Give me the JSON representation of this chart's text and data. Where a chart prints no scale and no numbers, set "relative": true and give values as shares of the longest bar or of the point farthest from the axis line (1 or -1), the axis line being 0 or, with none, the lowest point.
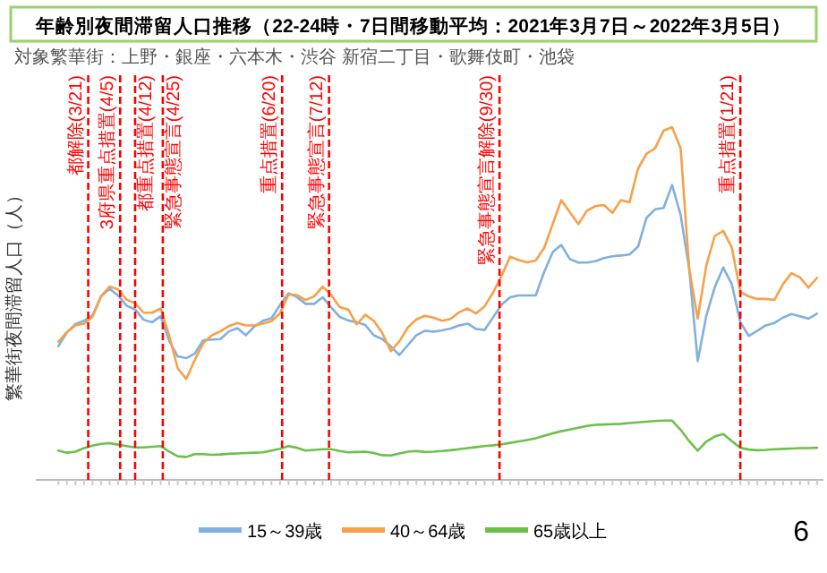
{
  "chart_data": {
    "type": "line",
    "title": "年齢別夜間滞留人口推移（22-24時・7日間移動平均：2021年3月7日～2022年3月5日）",
    "subtitle": "対象繁華街：上野・銀座・六本木・渋谷 新宿二丁目・歌舞伎町・池袋",
    "ylabel": "繁華街夜間滞留人口（人）",
    "relative": true,
    "legend": "bottom",
    "categories": [
      null,
      null,
      null,
      null,
      null,
      null,
      null,
      null,
      null,
      null,
      null,
      null,
      null,
      null,
      null,
      null,
      null,
      null,
      null,
      null,
      null,
      null,
      null,
      null,
      null,
      null,
      null,
      null,
      null,
      null,
      null,
      null,
      null,
      null,
      null,
      null,
      null,
      null,
      null,
      null,
      null,
      null,
      null,
      null,
      null,
      null,
      null,
      null,
      null,
      null,
      null,
      null,
      null,
      null,
      null,
      null,
      null,
      null,
      null,
      null,
      null,
      null,
      null,
      null,
      null,
      null,
      null,
      null,
      null,
      null,
      null,
      null,
      null,
      null,
      null,
      null,
      null,
      null,
      null,
      null,
      null,
      null,
      null,
      null,
      null,
      null,
      null,
      null,
      null,
      null
    ],
    "series": [
      {
        "name": "15～39歳",
        "color": "#7fb0e0",
        "values": [
          0.379,
          0.418,
          0.442,
          0.451,
          0.466,
          0.52,
          0.542,
          0.523,
          0.494,
          0.483,
          0.454,
          0.447,
          0.464,
          0.394,
          0.35,
          0.345,
          0.358,
          0.396,
          0.398,
          0.399,
          0.421,
          0.43,
          0.41,
          0.435,
          0.451,
          0.458,
          0.496,
          0.529,
          0.518,
          0.499,
          0.499,
          0.518,
          0.489,
          0.462,
          0.452,
          0.447,
          0.439,
          0.41,
          0.399,
          0.378,
          0.354,
          0.382,
          0.41,
          0.423,
          0.42,
          0.424,
          0.429,
          0.438,
          0.443,
          0.428,
          0.425,
          0.461,
          0.497,
          0.518,
          0.523,
          0.523,
          0.523,
          0.59,
          0.646,
          0.666,
          0.626,
          0.616,
          0.616,
          0.62,
          0.629,
          0.634,
          0.636,
          0.639,
          0.661,
          0.743,
          0.767,
          0.771,
          0.836,
          0.751,
          0.599,
          0.337,
          0.464,
          0.546,
          0.602,
          0.555,
          0.447,
          0.408,
          0.423,
          0.438,
          0.445,
          0.46,
          0.47,
          0.464,
          0.457,
          0.471
        ]
      },
      {
        "name": "40～64歳",
        "color": "#f7a04a",
        "values": [
          0.392,
          0.419,
          0.438,
          0.443,
          0.462,
          0.52,
          0.548,
          0.54,
          0.511,
          0.501,
          0.474,
          0.474,
          0.486,
          0.408,
          0.316,
          0.286,
          0.34,
          0.388,
          0.41,
          0.421,
          0.436,
          0.445,
          0.438,
          0.438,
          0.443,
          0.45,
          0.472,
          0.526,
          0.524,
          0.51,
          0.52,
          0.548,
          0.524,
          0.49,
          0.483,
          0.441,
          0.468,
          0.451,
          0.416,
          0.365,
          0.393,
          0.432,
          0.455,
          0.465,
          0.46,
          0.451,
          0.456,
          0.475,
          0.486,
          0.472,
          0.492,
          0.531,
          0.579,
          0.633,
          0.623,
          0.617,
          0.622,
          0.658,
          0.726,
          0.793,
          0.759,
          0.725,
          0.763,
          0.776,
          0.779,
          0.757,
          0.793,
          0.787,
          0.882,
          0.925,
          0.94,
          0.99,
          1.0,
          0.94,
          0.599,
          0.457,
          0.607,
          0.691,
          0.706,
          0.659,
          0.533,
          0.52,
          0.513,
          0.513,
          0.51,
          0.555,
          0.586,
          0.574,
          0.545,
          0.573
        ]
      },
      {
        "name": "65歳以上",
        "color": "#6cc04a",
        "values": [
          0.083,
          0.077,
          0.08,
          0.09,
          0.097,
          0.102,
          0.104,
          0.1,
          0.096,
          0.092,
          0.092,
          0.094,
          0.096,
          0.08,
          0.067,
          0.065,
          0.073,
          0.073,
          0.071,
          0.072,
          0.074,
          0.075,
          0.076,
          0.077,
          0.078,
          0.083,
          0.088,
          0.096,
          0.091,
          0.083,
          0.085,
          0.087,
          0.087,
          0.082,
          0.078,
          0.079,
          0.08,
          0.076,
          0.07,
          0.069,
          0.075,
          0.08,
          0.082,
          0.079,
          0.08,
          0.082,
          0.084,
          0.087,
          0.09,
          0.093,
          0.096,
          0.098,
          0.101,
          0.105,
          0.109,
          0.113,
          0.118,
          0.125,
          0.132,
          0.138,
          0.143,
          0.148,
          0.153,
          0.156,
          0.157,
          0.158,
          0.159,
          0.161,
          0.163,
          0.165,
          0.167,
          0.168,
          0.168,
          0.142,
          0.11,
          0.083,
          0.108,
          0.123,
          0.13,
          0.11,
          0.091,
          0.086,
          0.084,
          0.085,
          0.087,
          0.088,
          0.089,
          0.09,
          0.09,
          0.091
        ]
      }
    ],
    "annotations": [
      "都解除(3/21)",
      "3府県重点措置(4/5)",
      "都重点措置(4/12)",
      "緊急事態宣言(4/25)",
      "重点措置(6/20)",
      "緊急事態宣言(7/12)",
      "緊急事態宣言解除(9/30)",
      "重点措置(1/21)",
      "6"
    ]
  }
}
